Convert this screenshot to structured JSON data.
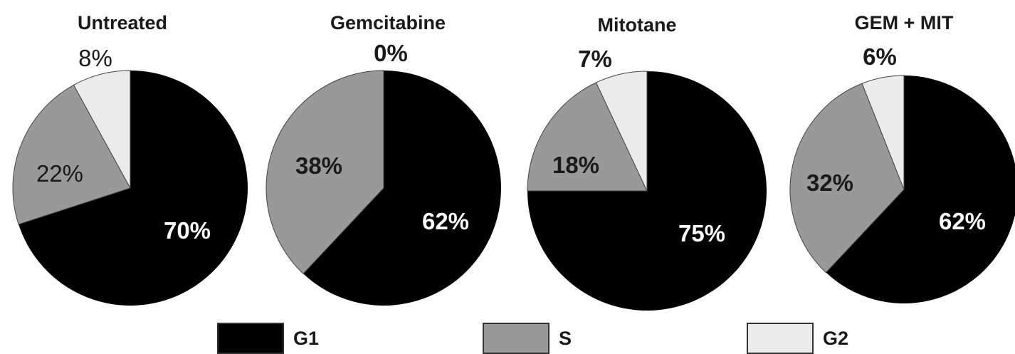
{
  "chart_data": {
    "type": "pie",
    "colors": {
      "G1": "#000000",
      "S": "#999999",
      "G2": "#ebebeb",
      "outline": "#444444"
    },
    "legend": {
      "placement": "bottom",
      "items": [
        {
          "key": "G1",
          "label": "G1"
        },
        {
          "key": "S",
          "label": "S"
        },
        {
          "key": "G2",
          "label": "G2"
        }
      ]
    },
    "charts": [
      {
        "title": "Untreated",
        "slices": [
          {
            "key": "G1",
            "value": 70,
            "label": "70%"
          },
          {
            "key": "S",
            "value": 22,
            "label": "22%"
          },
          {
            "key": "G2",
            "value": 8,
            "label": "8%"
          }
        ]
      },
      {
        "title": "Gemcitabine",
        "slices": [
          {
            "key": "G1",
            "value": 62,
            "label": "62%"
          },
          {
            "key": "S",
            "value": 38,
            "label": "38%"
          },
          {
            "key": "G2",
            "value": 0,
            "label": "0%"
          }
        ]
      },
      {
        "title": "Mitotane",
        "slices": [
          {
            "key": "G1",
            "value": 75,
            "label": "75%"
          },
          {
            "key": "S",
            "value": 18,
            "label": "18%"
          },
          {
            "key": "G2",
            "value": 7,
            "label": "7%"
          }
        ]
      },
      {
        "title": "GEM + MIT",
        "slices": [
          {
            "key": "G1",
            "value": 62,
            "label": "62%"
          },
          {
            "key": "S",
            "value": 32,
            "label": "32%"
          },
          {
            "key": "G2",
            "value": 6,
            "label": "6%"
          }
        ]
      }
    ]
  }
}
